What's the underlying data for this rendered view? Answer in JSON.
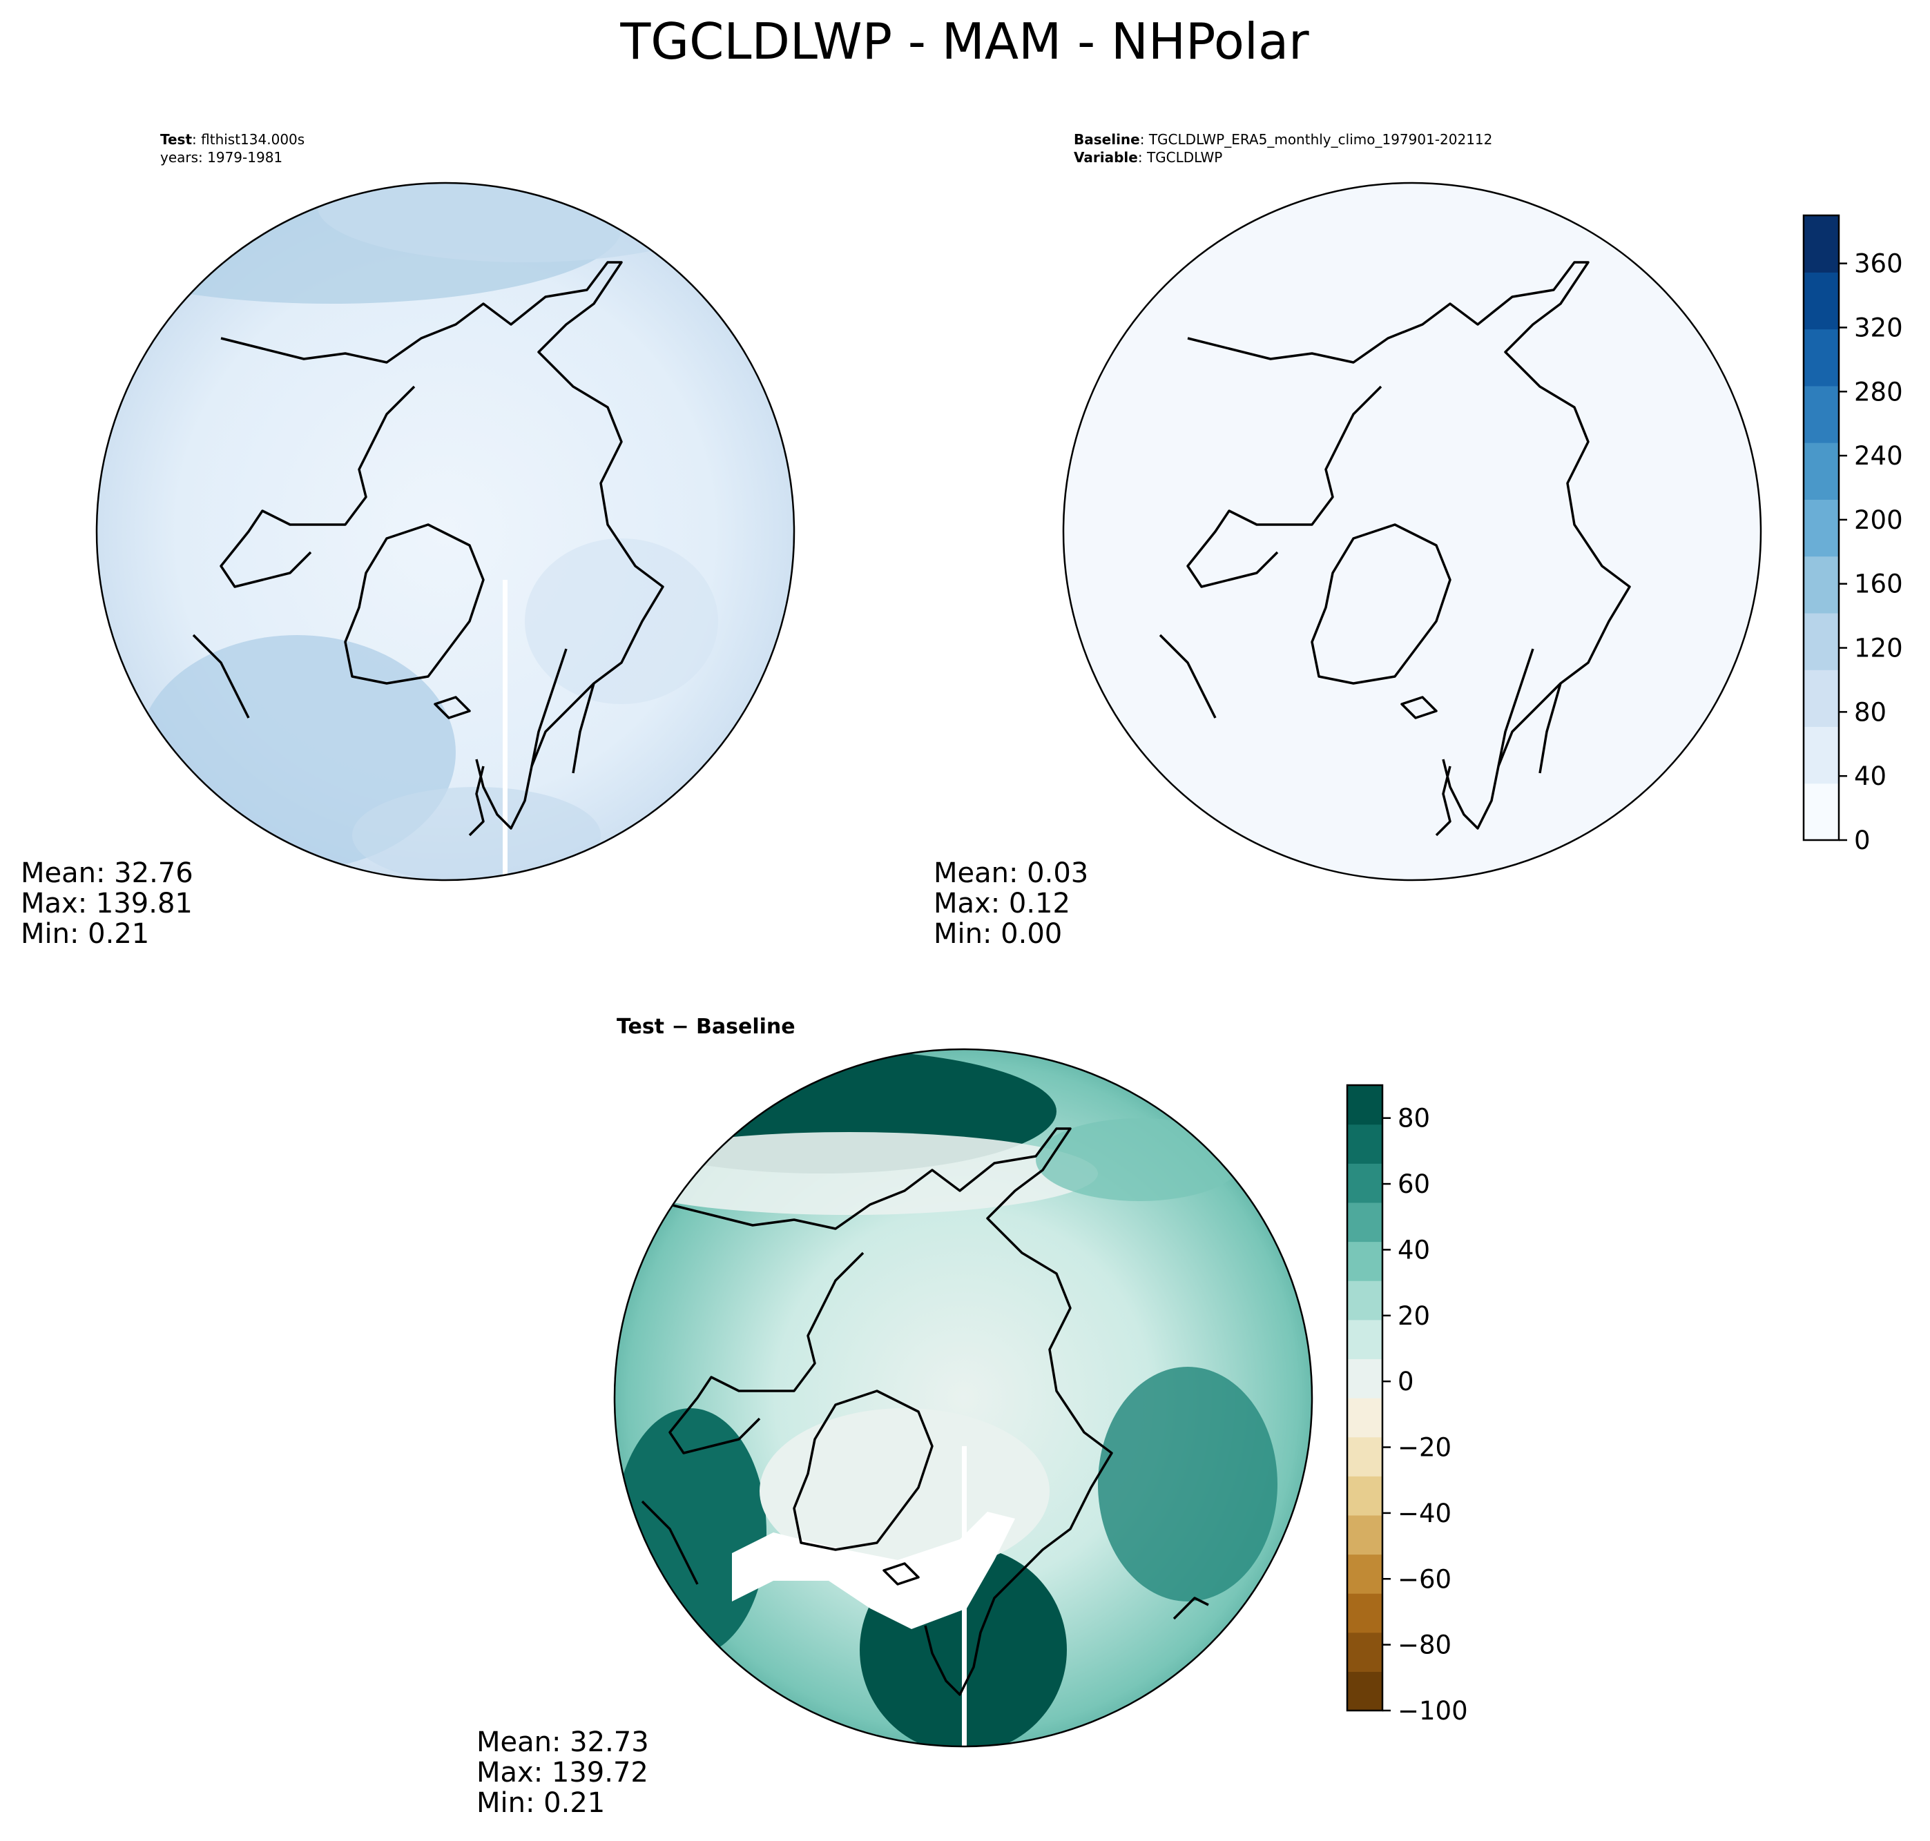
{
  "title": "TGCLDLWP - MAM - NHPolar",
  "panels": [
    {
      "id": "test",
      "header_line1_bold": "Test",
      "header_line1_value": "flthist134.000s",
      "header_line2": "years: 1979-1981",
      "stats": {
        "mean": "Mean: 32.76",
        "max": "Max: 139.81",
        "min": "Min:  0.21"
      }
    },
    {
      "id": "baseline",
      "header_line1_bold": "Baseline",
      "header_line1_value": "TGCLDLWP_ERA5_monthly_climo_197901-202112",
      "header_line2_bold": "Variable",
      "header_line2_value": "TGCLDLWP",
      "stats": {
        "mean": "Mean:  0.03",
        "max": "Max:  0.12",
        "min": "Min:  0.00"
      }
    },
    {
      "id": "diff",
      "header": "Test − Baseline",
      "stats": {
        "mean": "Mean: 32.73",
        "max": "Max: 139.72",
        "min": "Min:  0.21"
      }
    }
  ],
  "chart_data": [
    {
      "type": "heatmap",
      "projection": "north-polar-stereographic",
      "panel": "test",
      "colormap": "Blues",
      "colorbar_shared_with": "baseline",
      "mean": 32.76,
      "max": 139.81,
      "min": 0.21
    },
    {
      "type": "heatmap",
      "projection": "north-polar-stereographic",
      "panel": "baseline",
      "colormap": "Blues",
      "mean": 0.03,
      "max": 0.12,
      "min": 0.0,
      "colorbar": {
        "range": [
          0,
          390
        ],
        "ticks": [
          0,
          40,
          80,
          120,
          160,
          200,
          240,
          280,
          320,
          360
        ],
        "tick_labels": [
          "0",
          "40",
          "80",
          "120",
          "160",
          "200",
          "240",
          "280",
          "320",
          "360"
        ],
        "colors": [
          "#f7fbff",
          "#e3eef9",
          "#d0e1f2",
          "#b7d4ea",
          "#94c4df",
          "#6aaed6",
          "#4a98c9",
          "#2e7ebc",
          "#1764ab",
          "#084a91",
          "#08306b"
        ]
      }
    },
    {
      "type": "heatmap",
      "projection": "north-polar-stereographic",
      "panel": "diff",
      "colormap": "BrBG",
      "mean": 32.73,
      "max": 139.72,
      "min": 0.21,
      "colorbar": {
        "range": [
          -100,
          90
        ],
        "ticks": [
          -100,
          -80,
          -60,
          -40,
          -20,
          0,
          20,
          40,
          60,
          80
        ],
        "tick_labels": [
          "−100",
          "−80",
          "−60",
          "−40",
          "−20",
          "0",
          "20",
          "40",
          "60",
          "80"
        ],
        "colors": [
          "#6b3e08",
          "#8a5310",
          "#a86a1a",
          "#c18a35",
          "#d6ae62",
          "#e7cd8e",
          "#f2e3bc",
          "#f6efdd",
          "#e9f2ef",
          "#cdebe5",
          "#a6dbd1",
          "#79c6b8",
          "#4ea99c",
          "#2a8c80",
          "#0f6e63",
          "#01544a"
        ]
      }
    }
  ]
}
